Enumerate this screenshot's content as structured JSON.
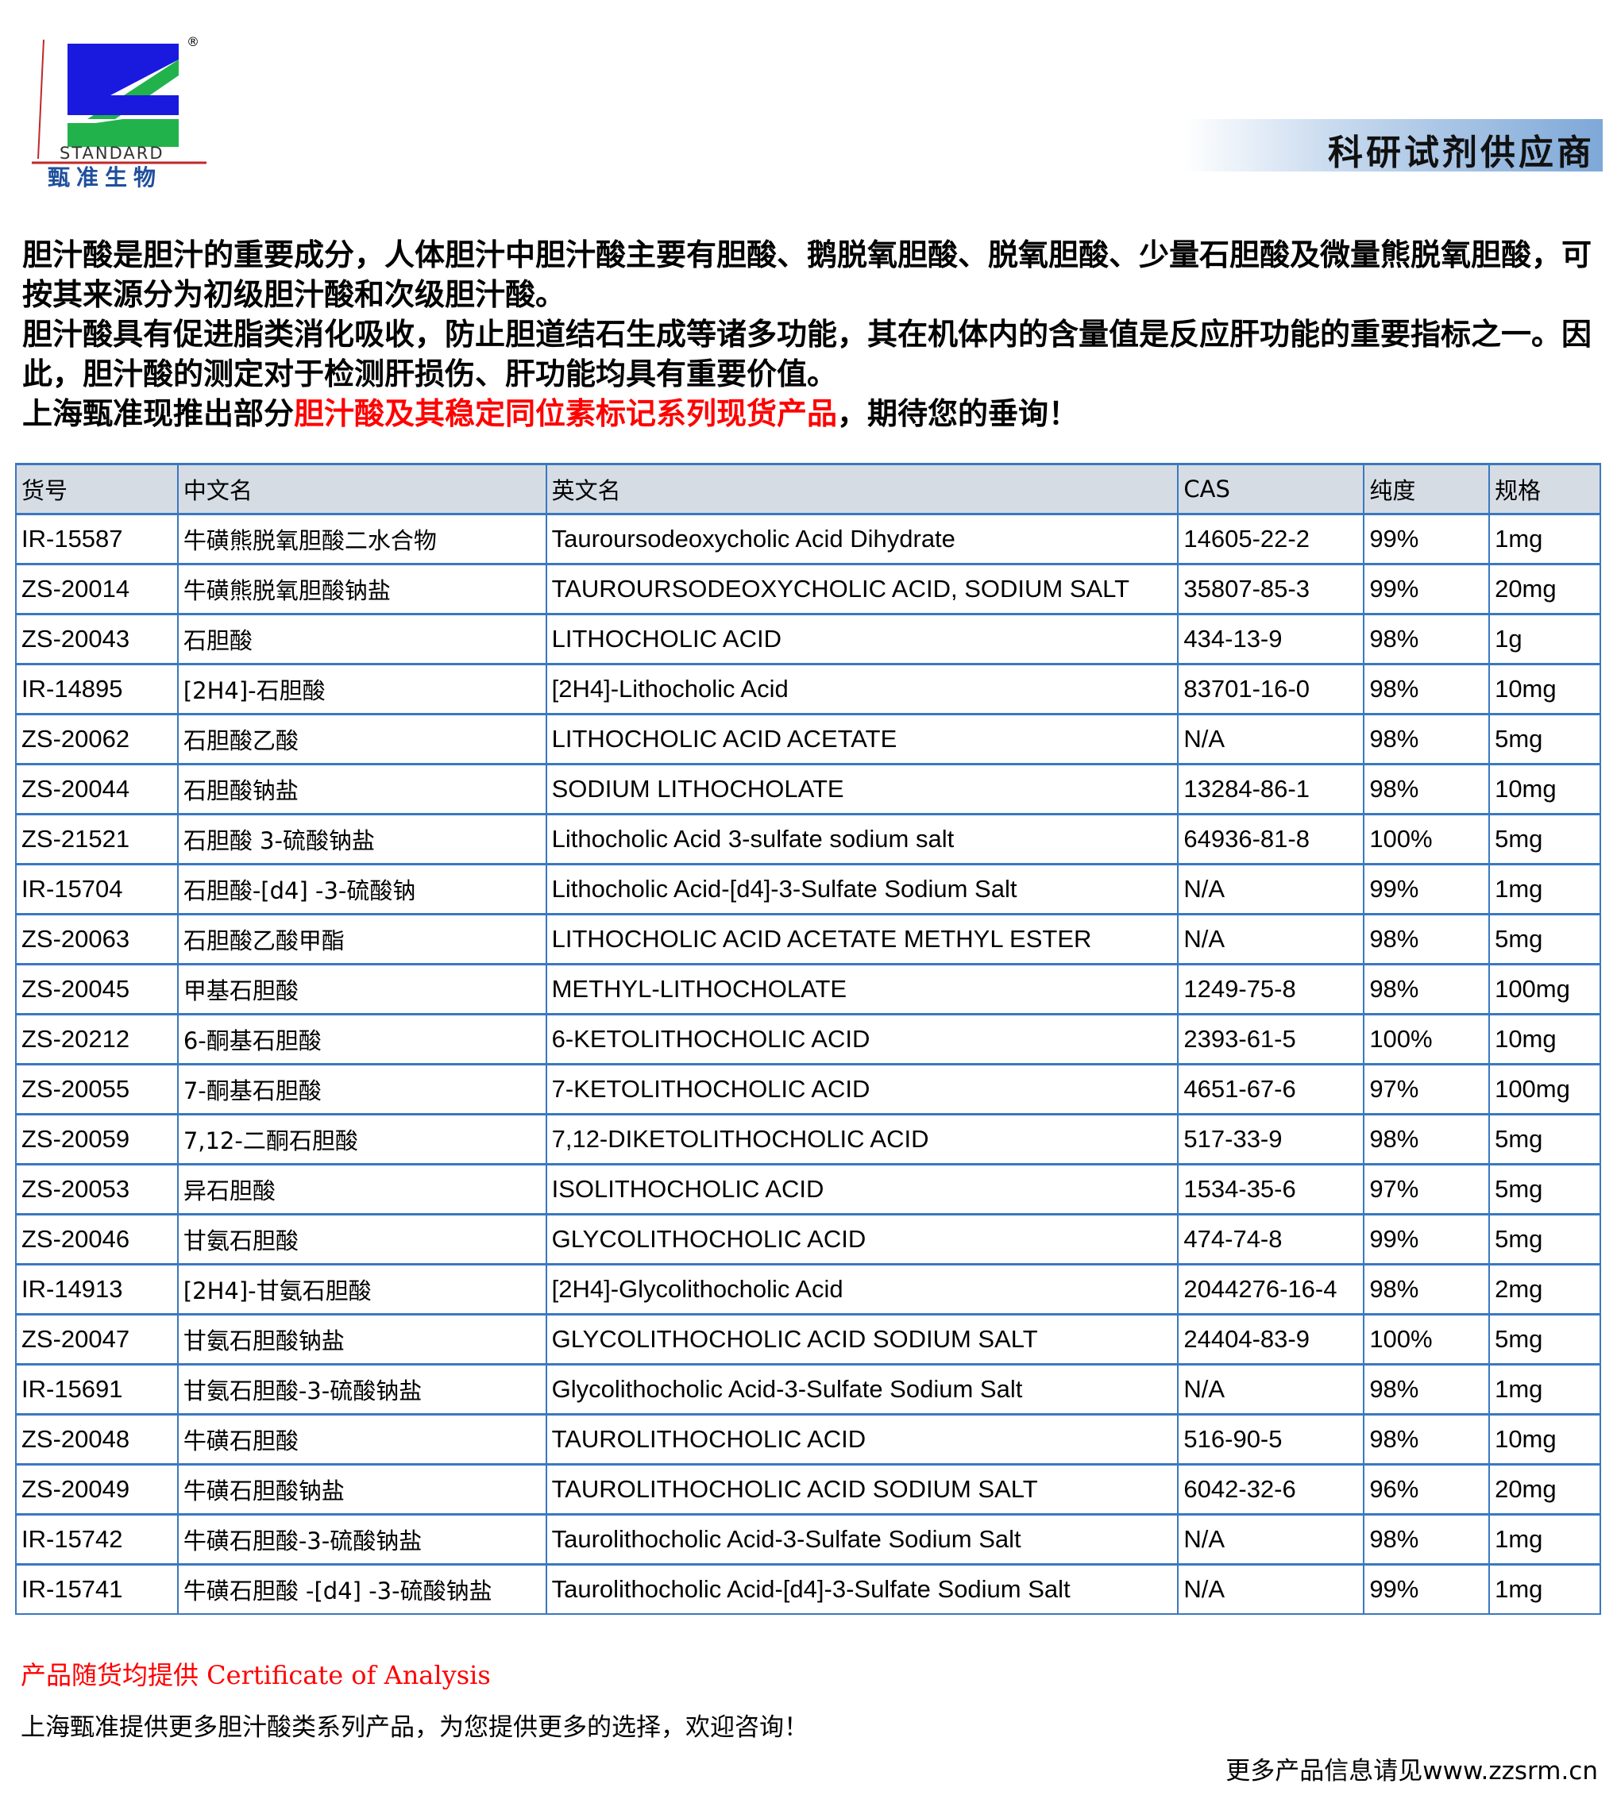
{
  "logo": {
    "brand_en": "STANDARD",
    "brand_zh": "甄准生物",
    "registered": "®",
    "colors": {
      "blue": "#1a1adf",
      "green": "#22b24c",
      "red": "#c0282a"
    }
  },
  "banner": {
    "text": "科研试剂供应商"
  },
  "intro": {
    "p1": "胆汁酸是胆汁的重要成分，人体胆汁中胆汁酸主要有胆酸、鹅脱氧胆酸、脱氧胆酸、少量石胆酸及微量熊脱氧胆酸，可按其来源分为初级胆汁酸和次级胆汁酸。",
    "p2": "胆汁酸具有促进脂类消化吸收，防止胆道结石生成等诸多功能，其在机体内的含量值是反应肝功能的重要指标之一。因此，胆汁酸的测定对于检测肝损伤、肝功能均具有重要价值。",
    "p3_pre": "上海甄准现推出部分",
    "p3_red": "胆汁酸及其稳定同位素标记系列现货产品",
    "p3_post": "，期待您的垂询！"
  },
  "table": {
    "headers": [
      "货号",
      "中文名",
      "英文名",
      "CAS",
      "纯度",
      "规格"
    ],
    "rows": [
      [
        "IR-15587",
        "牛磺熊脱氧胆酸二水合物",
        "Tauroursodeoxycholic Acid Dihydrate",
        "14605-22-2",
        "99%",
        "1mg"
      ],
      [
        "ZS-20014",
        "牛磺熊脱氧胆酸钠盐",
        "TAUROURSODEOXYCHOLIC ACID, SODIUM SALT",
        "35807-85-3",
        "99%",
        "20mg"
      ],
      [
        "ZS-20043",
        "石胆酸",
        "LITHOCHOLIC ACID",
        "434-13-9",
        "98%",
        "1g"
      ],
      [
        "IR-14895",
        "[2H4]-石胆酸",
        "[2H4]-Lithocholic Acid",
        "83701-16-0",
        "98%",
        "10mg"
      ],
      [
        "ZS-20062",
        "石胆酸乙酸",
        "LITHOCHOLIC ACID ACETATE",
        "N/A",
        "98%",
        "5mg"
      ],
      [
        "ZS-20044",
        "石胆酸钠盐",
        "SODIUM LITHOCHOLATE",
        "13284-86-1",
        "98%",
        "10mg"
      ],
      [
        "ZS-21521",
        "石胆酸 3-硫酸钠盐",
        "Lithocholic Acid 3-sulfate sodium salt",
        "64936-81-8",
        "100%",
        "5mg"
      ],
      [
        "IR-15704",
        "石胆酸-[d4] -3-硫酸钠",
        "Lithocholic Acid-[d4]-3-Sulfate Sodium Salt",
        "N/A",
        "99%",
        "1mg"
      ],
      [
        "ZS-20063",
        "石胆酸乙酸甲酯",
        "LITHOCHOLIC ACID ACETATE METHYL ESTER",
        "N/A",
        "98%",
        "5mg"
      ],
      [
        "ZS-20045",
        "甲基石胆酸",
        "METHYL-LITHOCHOLATE",
        "1249-75-8",
        "98%",
        "100mg"
      ],
      [
        "ZS-20212",
        "6-酮基石胆酸",
        "6-KETOLITHOCHOLIC ACID",
        "2393-61-5",
        "100%",
        "10mg"
      ],
      [
        "ZS-20055",
        "7-酮基石胆酸",
        "7-KETOLITHOCHOLIC ACID",
        "4651-67-6",
        "97%",
        "100mg"
      ],
      [
        "ZS-20059",
        "7,12-二酮石胆酸",
        "7,12-DIKETOLITHOCHOLIC ACID",
        "517-33-9",
        "98%",
        "5mg"
      ],
      [
        "ZS-20053",
        "异石胆酸",
        "ISOLITHOCHOLIC ACID",
        "1534-35-6",
        "97%",
        "5mg"
      ],
      [
        "ZS-20046",
        "甘氨石胆酸",
        "GLYCOLITHOCHOLIC ACID",
        "474-74-8",
        "99%",
        "5mg"
      ],
      [
        "IR-14913",
        "[2H4]-甘氨石胆酸",
        "[2H4]-Glycolithocholic Acid",
        "2044276-16-4",
        "98%",
        "2mg"
      ],
      [
        "ZS-20047",
        "甘氨石胆酸钠盐",
        "GLYCOLITHOCHOLIC ACID SODIUM SALT",
        "24404-83-9",
        "100%",
        "5mg"
      ],
      [
        "IR-15691",
        "甘氨石胆酸-3-硫酸钠盐",
        "Glycolithocholic Acid-3-Sulfate Sodium Salt",
        "N/A",
        "98%",
        "1mg"
      ],
      [
        "ZS-20048",
        "牛磺石胆酸",
        "TAUROLITHOCHOLIC ACID",
        "516-90-5",
        "98%",
        "10mg"
      ],
      [
        "ZS-20049",
        "牛磺石胆酸钠盐",
        "TAUROLITHOCHOLIC ACID SODIUM SALT",
        "6042-32-6",
        "96%",
        "20mg"
      ],
      [
        "IR-15742",
        "牛磺石胆酸-3-硫酸钠盐",
        "Taurolithocholic Acid-3-Sulfate Sodium Salt",
        "N/A",
        "98%",
        "1mg"
      ],
      [
        "IR-15741",
        "牛磺石胆酸 -[d4] -3-硫酸钠盐",
        "Taurolithocholic Acid-[d4]-3-Sulfate Sodium Salt",
        "N/A",
        "99%",
        "1mg"
      ]
    ]
  },
  "footer": {
    "certificate": "产品随货均提供 Certificate of Analysis",
    "more": "上海甄准提供更多胆汁酸类系列产品，为您提供更多的选择，欢迎咨询！",
    "website": "更多产品信息请见www.zzsrm.cn"
  }
}
